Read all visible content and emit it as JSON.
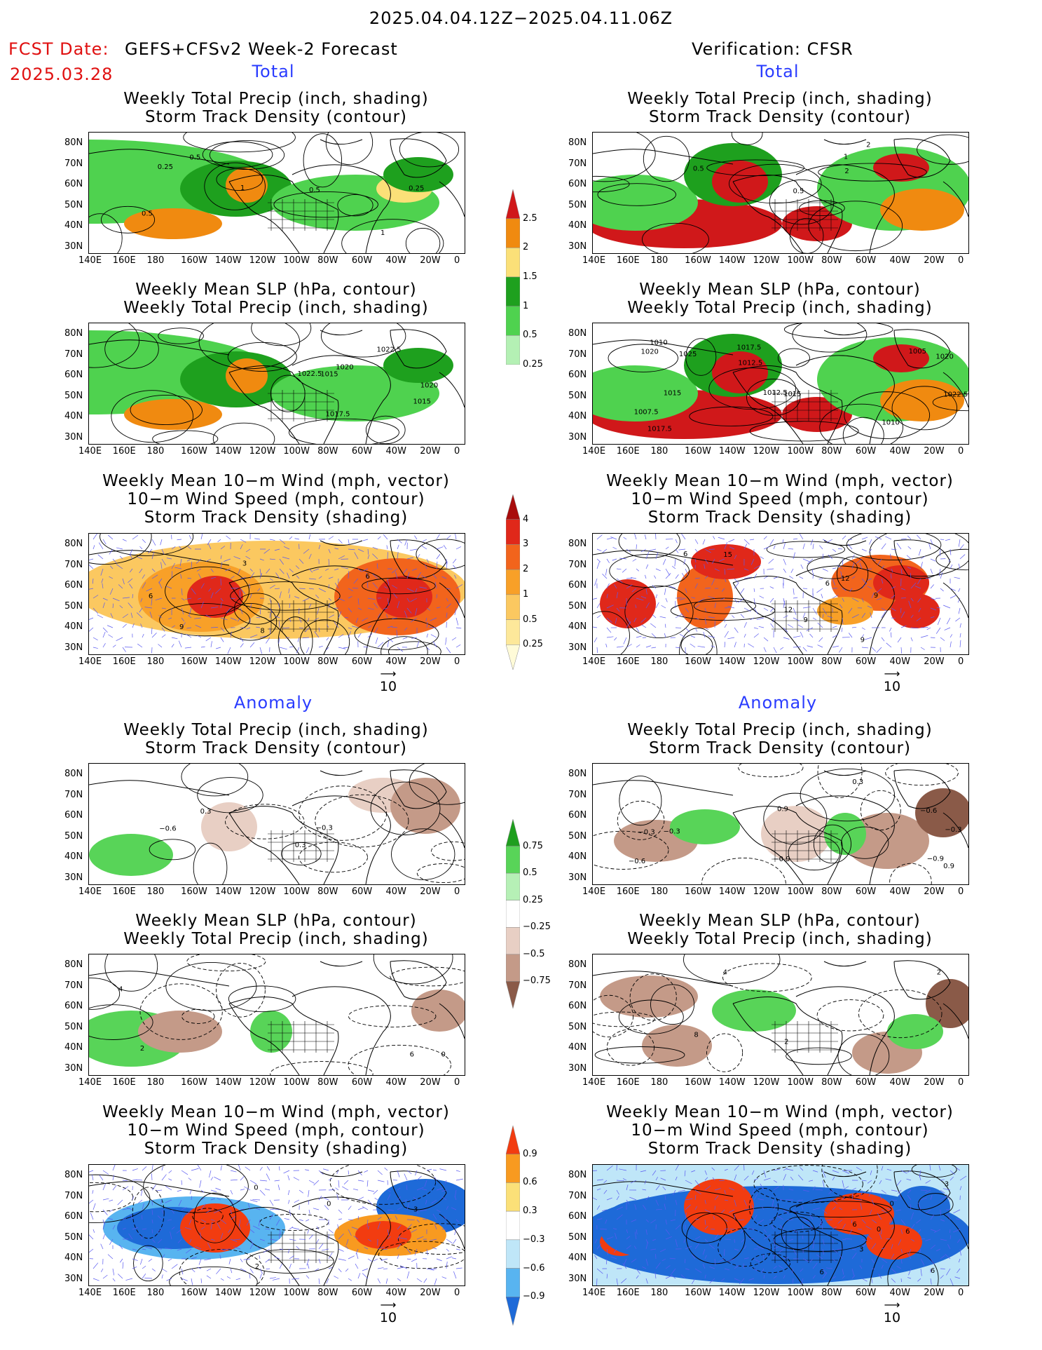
{
  "header": {
    "period": "2025.04.04.12Z−2025.04.11.06Z",
    "fcst_label": "FCST Date:",
    "fcst_model": "GEFS+CFSv2 Week-2 Forecast",
    "fcst_date": "2025.03.28",
    "verification": "Verification: CFSR"
  },
  "sections": {
    "total": "Total",
    "anomaly": "Anomaly"
  },
  "panel_titles": {
    "precip_storm": [
      "Weekly Total Precip (inch, shading)",
      "Storm Track Density (contour)"
    ],
    "slp_precip": [
      "Weekly Mean SLP (hPa, contour)",
      "Weekly Total Precip (inch, shading)"
    ],
    "wind_storm": [
      "Weekly Mean 10−m Wind (mph, vector)",
      "10−m Wind Speed (mph, contour)",
      "Storm Track Density (shading)"
    ]
  },
  "axes": {
    "lon_labels": [
      "140E",
      "160E",
      "180",
      "160W",
      "140W",
      "120W",
      "100W",
      "80W",
      "60W",
      "40W",
      "20W",
      "0"
    ],
    "lat_labels": [
      "80N",
      "70N",
      "60N",
      "50N",
      "40N",
      "30N"
    ]
  },
  "vector_reference": "10",
  "colorbars": {
    "total_precip": {
      "labels": [
        "2.5",
        "2",
        "1.5",
        "1",
        "0.5",
        "0.25"
      ],
      "colors": [
        "#d0181a",
        "#f08a10",
        "#fbe078",
        "#1ea01e",
        "#4fd24f",
        "#b4f0b4"
      ]
    },
    "total_storm": {
      "labels": [
        "4",
        "3",
        "2",
        "1",
        "0.5",
        "0.25"
      ],
      "colors": [
        "#a80c0c",
        "#e0281a",
        "#f2641c",
        "#f8a028",
        "#fbc860",
        "#fde89a",
        "#fffbd8"
      ]
    },
    "anom_precip": {
      "labels": [
        "0.75",
        "0.5",
        "0.25",
        "−0.25",
        "−0.5",
        "−0.75"
      ],
      "colors": [
        "#1e9e1e",
        "#58d458",
        "#b6f0b6",
        "#ffffff",
        "#e8cfc4",
        "#c49a88",
        "#8a5a48"
      ]
    },
    "anom_storm": {
      "labels": [
        "0.9",
        "0.6",
        "0.3",
        "−0.3",
        "−0.6",
        "−0.9"
      ],
      "colors": [
        "#f23c10",
        "#f89a20",
        "#fbe078",
        "#ffffff",
        "#bfe6f8",
        "#58b4f0",
        "#1e6ad8"
      ]
    }
  },
  "panel_annotations": {
    "p1_left": [
      "0.5",
      "0.25",
      "1",
      "1",
      "0.5",
      "0.25",
      "0.5"
    ],
    "p1_right": [
      "2",
      "0.5",
      "2",
      "1",
      "0.5"
    ],
    "p2_left": [
      "1020",
      "1017.5",
      "1022.5",
      "1015",
      "1020",
      "1022.5",
      "1015"
    ],
    "p2_right": [
      "1025",
      "1022.5",
      "1017.5",
      "1015",
      "1012.5",
      "1015",
      "1017.5",
      "1020",
      "1020",
      "1010",
      "1012.5",
      "1005",
      "1007.5",
      "1010"
    ],
    "p3_left": [
      "6",
      "3",
      "9",
      "8",
      "6"
    ],
    "p3_right": [
      "6",
      "9",
      "12",
      "15",
      "6",
      "9",
      "12",
      "9"
    ],
    "p4_left": [
      "0.3",
      "−0.6",
      "−0.3",
      "0.3"
    ],
    "p4_right": [
      "−0.3",
      "0.9",
      "−0.6",
      "−0.3",
      "−0.6",
      "0.9",
      "−0.3",
      "−0.9",
      "0.3",
      "−0.9"
    ],
    "p5_left": [
      "0",
      "6",
      "4",
      "2"
    ],
    "p5_right": [
      "2",
      "8",
      "4",
      "2"
    ],
    "p6_left": [
      "0",
      "0",
      "2",
      "3"
    ],
    "p6_right": [
      "6",
      "3",
      "3",
      "0",
      "6",
      "0",
      "6",
      "6"
    ]
  }
}
